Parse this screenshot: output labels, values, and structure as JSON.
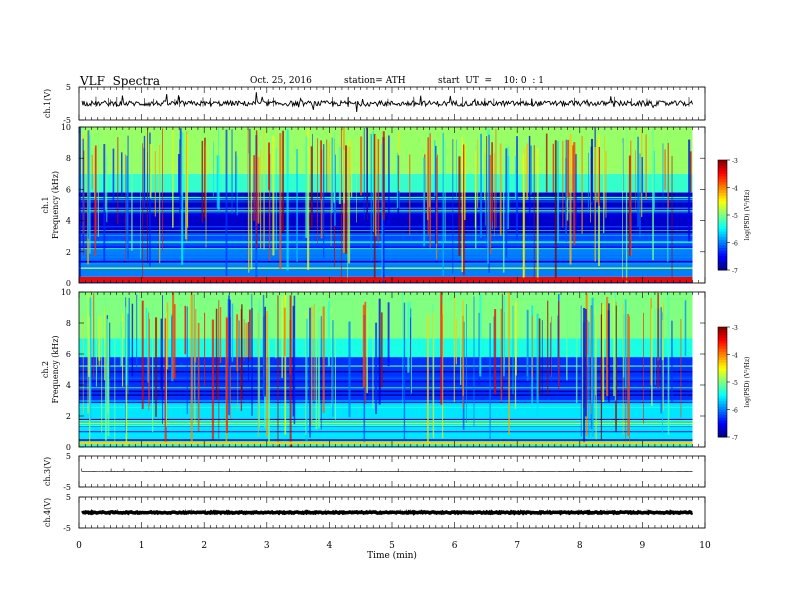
{
  "header": {
    "title": "VLF  Spectra",
    "date": "Oct. 25, 2016",
    "station": "station= ATH",
    "start_ut": "start  UT  =    10: 0  : 1"
  },
  "chart_data": [
    {
      "type": "line",
      "panel": "ch.1 waveform",
      "ylabel": "ch.1(V)",
      "ylim": [
        -5,
        5
      ],
      "yticks": [
        "5",
        "-5"
      ],
      "x_range_min": [
        0,
        9.8
      ],
      "description_level": "noisy waveform centered near 0 V with spikes"
    },
    {
      "type": "heatmap",
      "panel": "ch.1 spectrogram",
      "ylabel_channel": "ch.1",
      "ylabel": "Frequency  (kHz)",
      "ylim": [
        0,
        10
      ],
      "yticks": [
        "0",
        "2",
        "4",
        "6",
        "8",
        "10"
      ],
      "colorbar": {
        "label": "log(PSD) (V²/Hz)",
        "range": [
          -7,
          -3
        ],
        "ticks": [
          "-3",
          "-4",
          "-5",
          "-6",
          "-7"
        ]
      },
      "bands_khz": [
        {
          "from": 0,
          "to": 0.4,
          "level": -3.5
        },
        {
          "from": 0.4,
          "to": 2.2,
          "level": -6.0
        },
        {
          "from": 2.2,
          "to": 3.2,
          "level": -6.2
        },
        {
          "from": 3.2,
          "to": 5.8,
          "level": -6.7
        },
        {
          "from": 5.8,
          "to": 7.0,
          "level": -5.3
        },
        {
          "from": 7.0,
          "to": 10,
          "level": -4.9
        }
      ]
    },
    {
      "type": "heatmap",
      "panel": "ch.2 spectrogram",
      "ylabel_channel": "ch.2",
      "ylabel": "Frequency  (kHz)",
      "ylim": [
        0,
        10
      ],
      "yticks": [
        "0",
        "2",
        "4",
        "6",
        "8",
        "10"
      ],
      "colorbar": {
        "label": "log(PSD) (V²/Hz)",
        "range": [
          -7,
          -3
        ],
        "ticks": [
          "-3",
          "-4",
          "-5",
          "-6",
          "-7"
        ]
      },
      "bands_khz": [
        {
          "from": 0,
          "to": 0.3,
          "level": -5.5
        },
        {
          "from": 0.3,
          "to": 3.0,
          "level": -5.6
        },
        {
          "from": 3.0,
          "to": 5.8,
          "level": -6.3
        },
        {
          "from": 5.8,
          "to": 7.0,
          "level": -5.4
        },
        {
          "from": 7.0,
          "to": 10,
          "level": -5.0
        }
      ]
    },
    {
      "type": "line",
      "panel": "ch.3 waveform",
      "ylabel": "ch.3(V)",
      "ylim": [
        -5,
        5
      ],
      "yticks": [
        "5",
        "-5"
      ],
      "level": 0
    },
    {
      "type": "line",
      "panel": "ch.4 waveform",
      "ylabel": "ch.4(V)",
      "ylim": [
        -5,
        5
      ],
      "yticks": [
        "5",
        "-5"
      ],
      "level": 0
    }
  ],
  "x_axis": {
    "label": "Time  (min)",
    "ticks": [
      "0",
      "1",
      "2",
      "3",
      "4",
      "5",
      "6",
      "7",
      "8",
      "9",
      "10"
    ],
    "range": [
      0,
      10
    ],
    "data_end_min": 9.8
  }
}
